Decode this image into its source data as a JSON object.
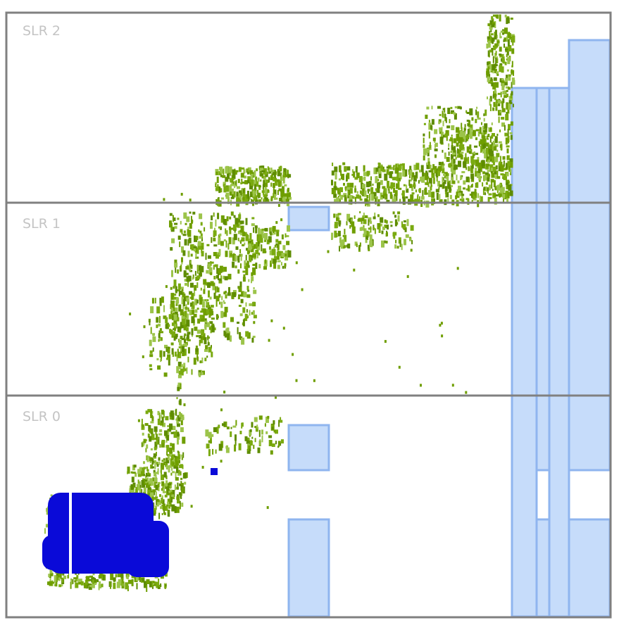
{
  "regions": [
    {
      "label": "SLR 2"
    },
    {
      "label": "SLR 1"
    },
    {
      "label": "SLR 0"
    }
  ]
}
